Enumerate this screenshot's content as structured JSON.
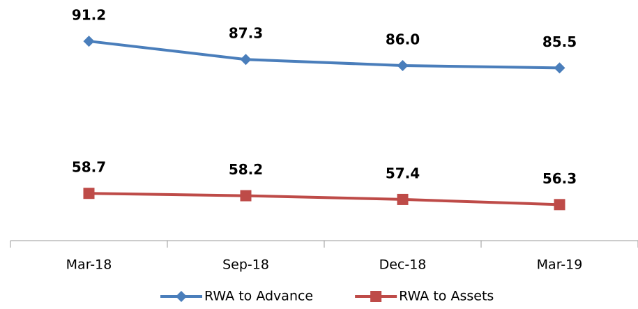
{
  "chart_data": {
    "type": "line",
    "categories": [
      "Mar-18",
      "Sep-18",
      "Dec-18",
      "Mar-19"
    ],
    "series": [
      {
        "name": "RWA to Advance",
        "color": "#4a7ebb",
        "marker": "diamond",
        "values": [
          91.2,
          87.3,
          86.0,
          85.5
        ],
        "value_labels": [
          "91.2",
          "87.3",
          "86.0",
          "85.5"
        ]
      },
      {
        "name": "RWA to Assets",
        "color": "#be4b48",
        "marker": "square",
        "values": [
          58.7,
          58.2,
          57.4,
          56.3
        ],
        "value_labels": [
          "58.7",
          "58.2",
          "57.4",
          "56.3"
        ]
      }
    ],
    "ylim": [
      48.6,
      100
    ],
    "legend": "bottom"
  }
}
